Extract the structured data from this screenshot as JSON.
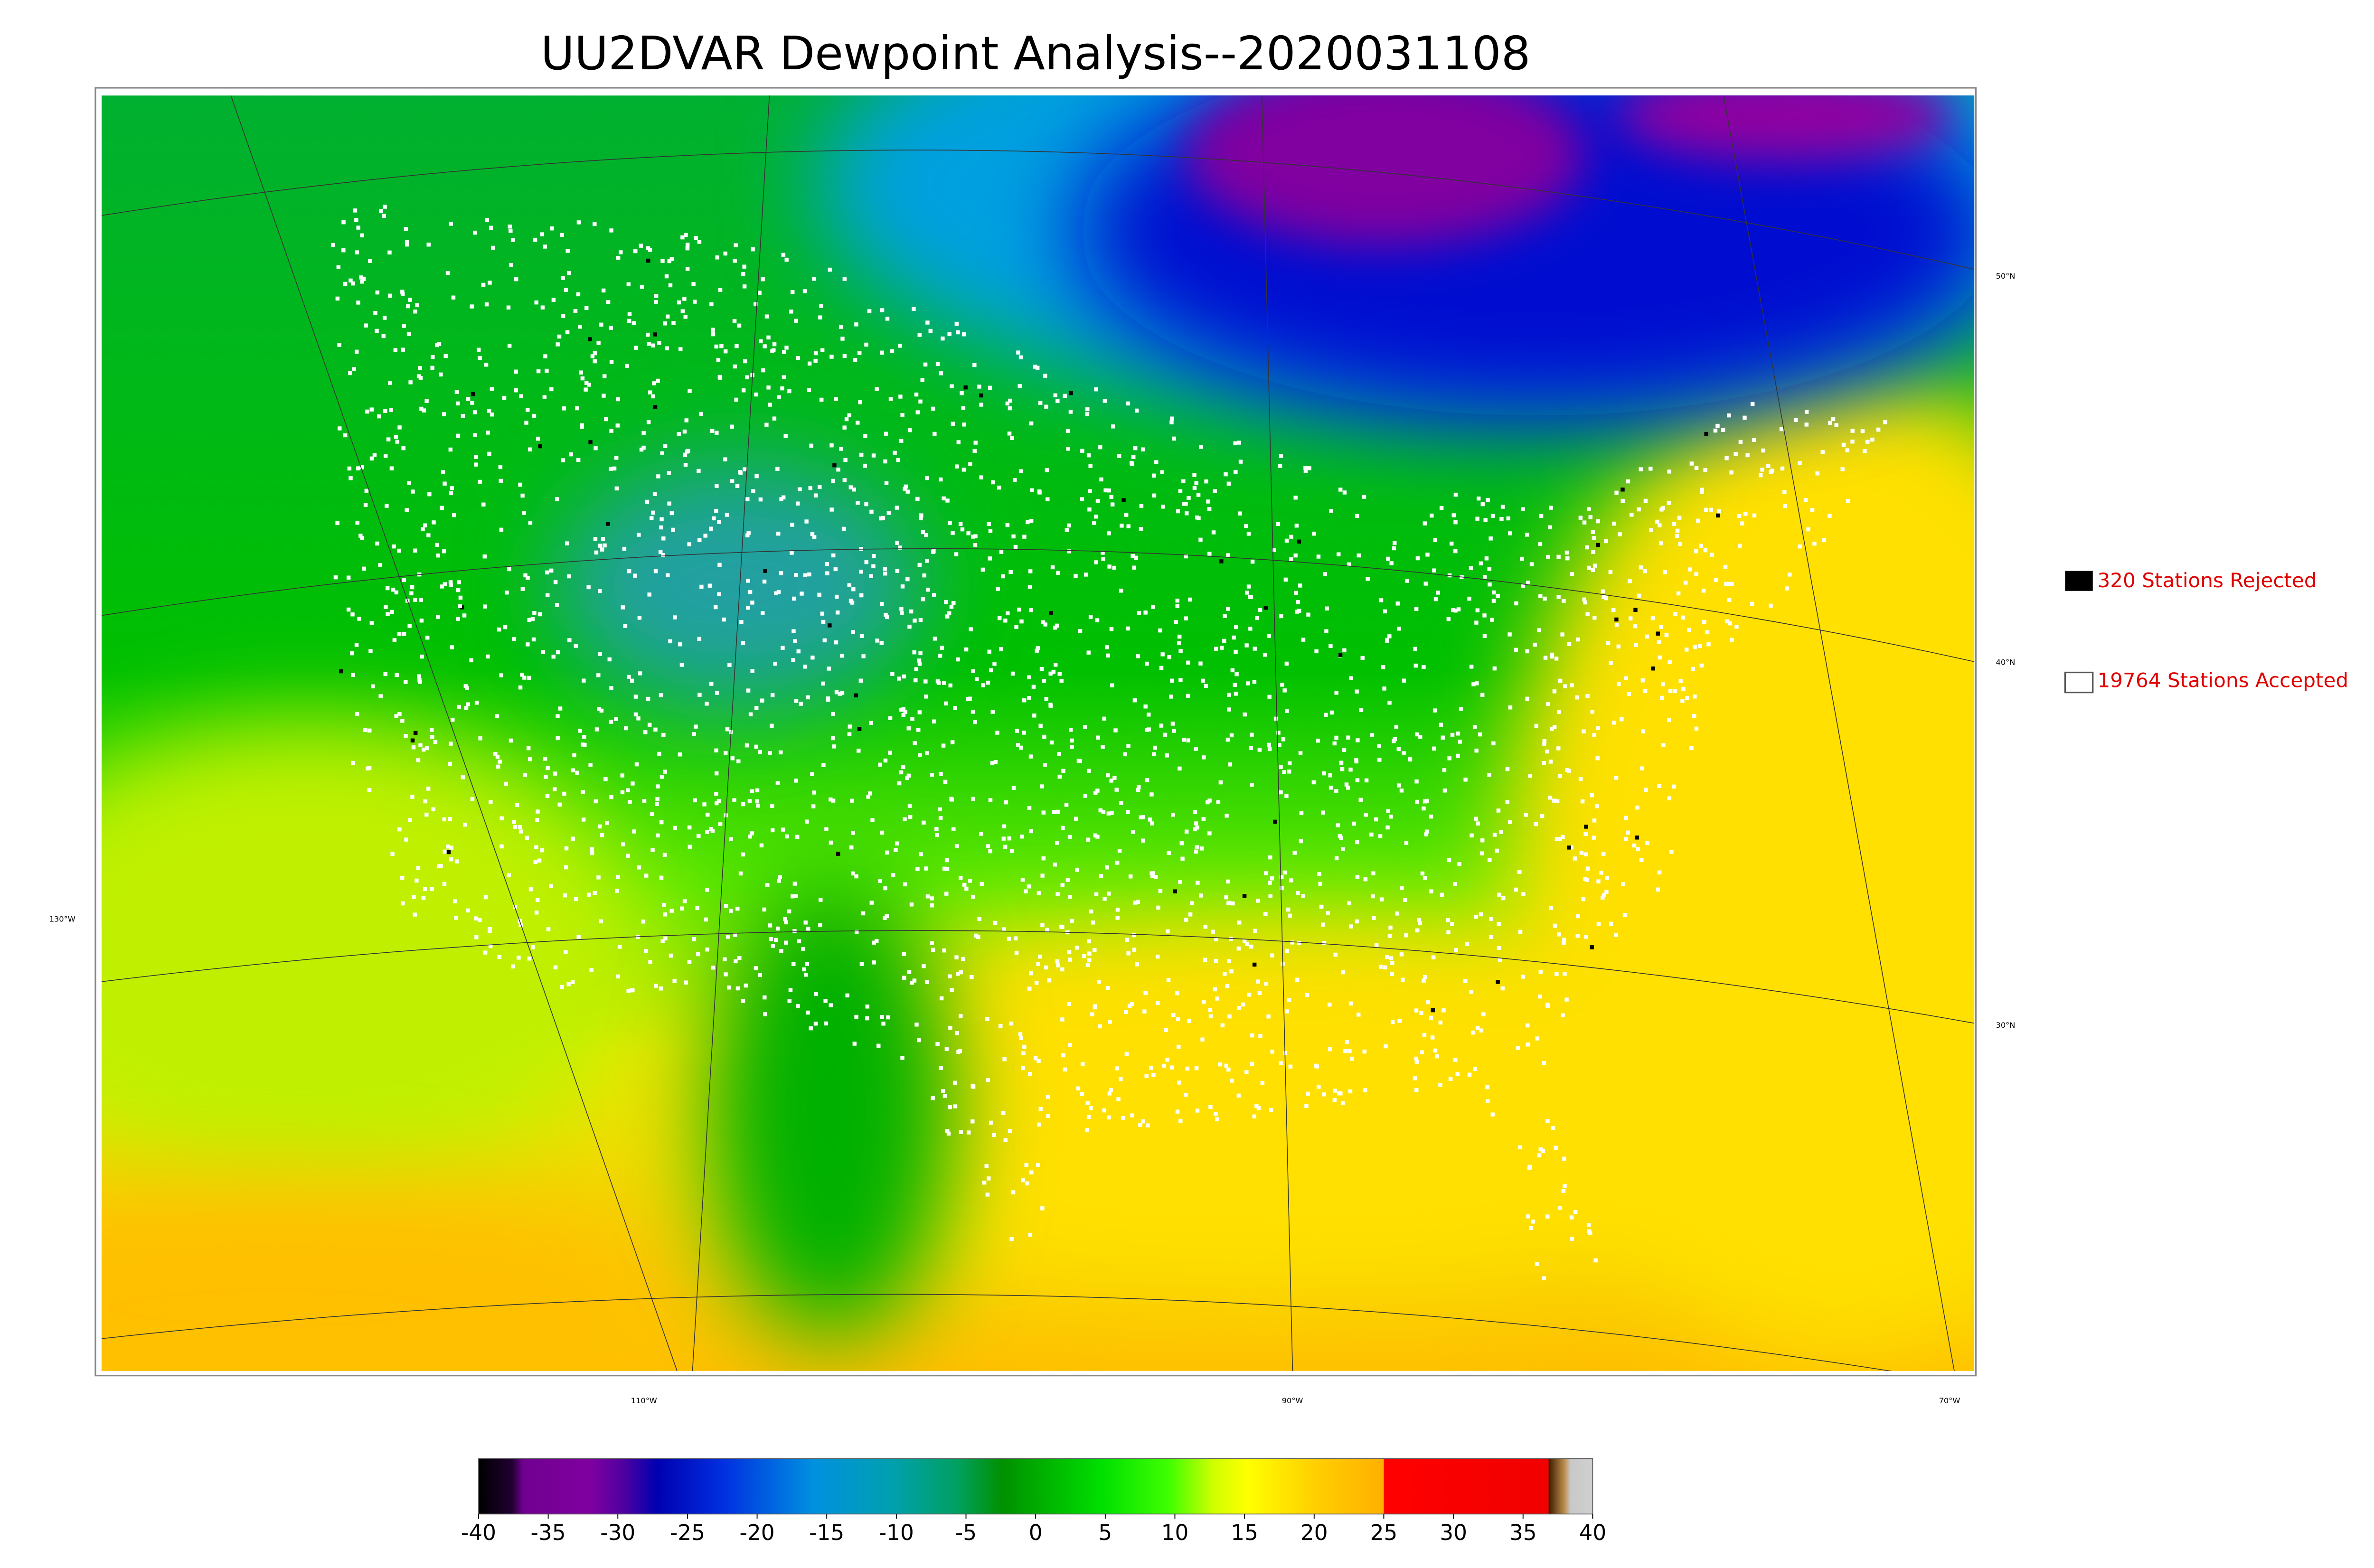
{
  "title": "UU2DVAR Dewpoint Analysis--2020031108",
  "legend": [
    {
      "label": "320 Stations Rejected"
    },
    {
      "label": "19764 Stations Accepted"
    }
  ],
  "latitude_labels": [
    "50°N",
    "40°N",
    "30°N"
  ],
  "longitude_labels": [
    "130°W",
    "110°W",
    "90°W",
    "70°W"
  ],
  "colorbar": {
    "range": [
      -40,
      40
    ],
    "ticks": [
      -40,
      -35,
      -30,
      -25,
      -20,
      -15,
      -10,
      -5,
      0,
      5,
      10,
      15,
      20,
      25,
      30,
      35,
      40
    ]
  }
}
